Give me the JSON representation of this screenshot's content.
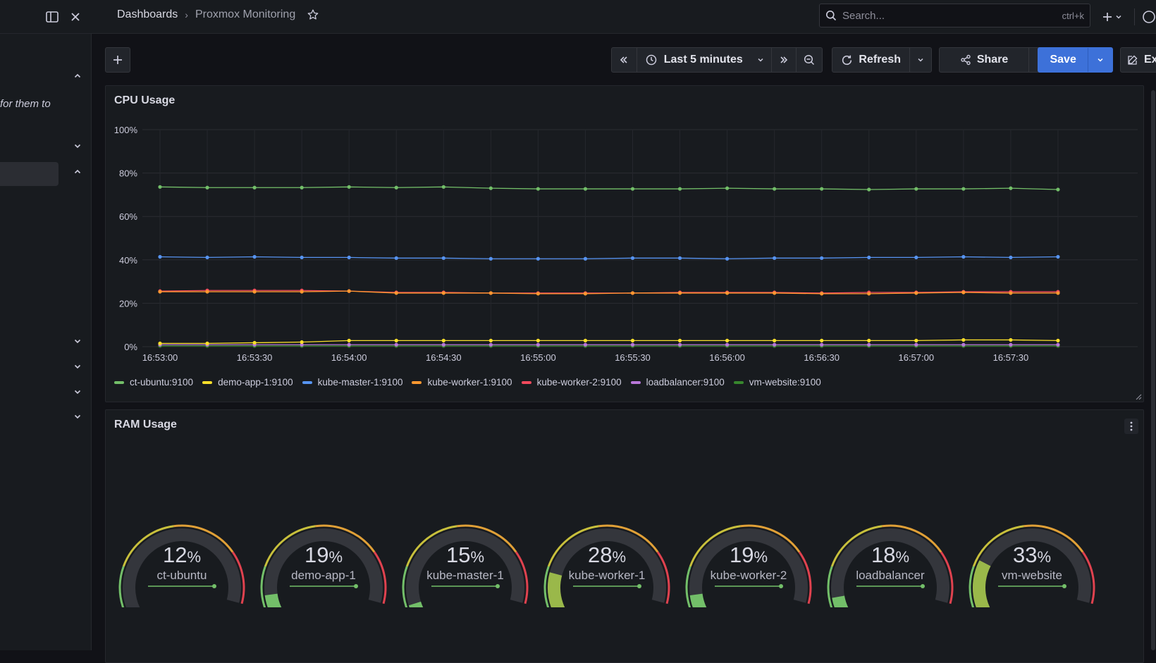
{
  "topbar": {
    "breadcrumb_root": "Dashboards",
    "breadcrumb_sep": "›",
    "breadcrumb_current": "Proxmox Monitoring",
    "search_placeholder": "Search...",
    "search_shortcut": "ctrl+k"
  },
  "sidebar": {
    "hint_text": "for them to"
  },
  "toolbar": {
    "time_range": "Last 5 minutes",
    "refresh_label": "Refresh",
    "share_label": "Share",
    "save_label": "Save",
    "edit_label": "Ex"
  },
  "cpu_panel": {
    "title": "CPU Usage"
  },
  "ram_panel": {
    "title": "RAM Usage",
    "unit": "%",
    "gauges": [
      {
        "name": "ct-ubuntu",
        "value": 12
      },
      {
        "name": "demo-app-1",
        "value": 19
      },
      {
        "name": "kube-master-1",
        "value": 15
      },
      {
        "name": "kube-worker-1",
        "value": 28
      },
      {
        "name": "kube-worker-2",
        "value": 19
      },
      {
        "name": "loadbalancer",
        "value": 18
      },
      {
        "name": "vm-website",
        "value": 33
      }
    ]
  },
  "chart_data": {
    "type": "line",
    "title": "CPU Usage",
    "xlabel": "",
    "ylabel": "",
    "ylim": [
      0,
      100
    ],
    "y_ticks": [
      "0%",
      "20%",
      "40%",
      "60%",
      "80%",
      "100%"
    ],
    "x_ticks": [
      "16:53:00",
      "16:53:30",
      "16:54:00",
      "16:54:30",
      "16:55:00",
      "16:55:30",
      "16:56:00",
      "16:56:30",
      "16:57:00",
      "16:57:30"
    ],
    "grid": true,
    "legend_position": "bottom-left",
    "x": [
      "16:53:00",
      "16:53:15",
      "16:53:30",
      "16:53:45",
      "16:54:00",
      "16:54:15",
      "16:54:30",
      "16:54:45",
      "16:55:00",
      "16:55:15",
      "16:55:30",
      "16:55:45",
      "16:56:00",
      "16:56:15",
      "16:56:30",
      "16:56:45",
      "16:57:00",
      "16:57:15",
      "16:57:30",
      "16:57:45"
    ],
    "series": [
      {
        "name": "ct-ubuntu:9100",
        "color": "#73bf69",
        "values": [
          73.6,
          73.3,
          73.3,
          73.3,
          73.6,
          73.3,
          73.6,
          73.0,
          72.7,
          72.7,
          72.7,
          72.7,
          73.0,
          72.7,
          72.7,
          72.4,
          72.7,
          72.7,
          73.0,
          72.4
        ]
      },
      {
        "name": "demo-app-1:9100",
        "color": "#fade2a",
        "values": [
          1.5,
          1.5,
          1.8,
          2.1,
          2.8,
          2.8,
          2.8,
          2.8,
          2.8,
          2.8,
          2.8,
          2.8,
          2.8,
          2.8,
          2.8,
          2.8,
          2.8,
          3.1,
          3.1,
          2.8
        ]
      },
      {
        "name": "kube-master-1:9100",
        "color": "#5794f2",
        "values": [
          41.4,
          41.1,
          41.4,
          41.1,
          41.1,
          40.8,
          40.8,
          40.5,
          40.5,
          40.5,
          40.8,
          40.8,
          40.5,
          40.8,
          40.8,
          41.1,
          41.1,
          41.4,
          41.1,
          41.4
        ]
      },
      {
        "name": "kube-worker-1:9100",
        "color": "#ff9830",
        "values": [
          25.3,
          25.3,
          25.3,
          25.3,
          25.6,
          24.7,
          24.7,
          24.7,
          24.4,
          24.4,
          24.7,
          24.7,
          24.7,
          24.7,
          24.4,
          24.4,
          24.7,
          25.0,
          24.7,
          24.7
        ]
      },
      {
        "name": "kube-worker-2:9100",
        "color": "#f2495c",
        "values": [
          25.6,
          25.9,
          25.9,
          25.9,
          25.6,
          25.0,
          25.0,
          24.7,
          24.7,
          24.7,
          24.7,
          25.0,
          25.0,
          25.0,
          24.7,
          25.0,
          25.0,
          25.3,
          25.3,
          25.3
        ]
      },
      {
        "name": "loadbalancer:9100",
        "color": "#b877d9",
        "values": [
          0.9,
          0.9,
          0.9,
          0.9,
          0.9,
          0.9,
          0.9,
          0.9,
          0.9,
          0.9,
          0.9,
          0.9,
          0.9,
          0.9,
          0.9,
          0.9,
          0.9,
          0.9,
          0.9,
          0.9
        ]
      },
      {
        "name": "vm-website:9100",
        "color": "#37872d",
        "values": [
          0.3,
          0.3,
          0.3,
          0.3,
          0.3,
          0.3,
          0.3,
          0.3,
          0.3,
          0.3,
          0.3,
          0.3,
          0.3,
          0.3,
          0.3,
          0.3,
          0.3,
          0.3,
          0.3,
          0.3
        ]
      }
    ]
  }
}
